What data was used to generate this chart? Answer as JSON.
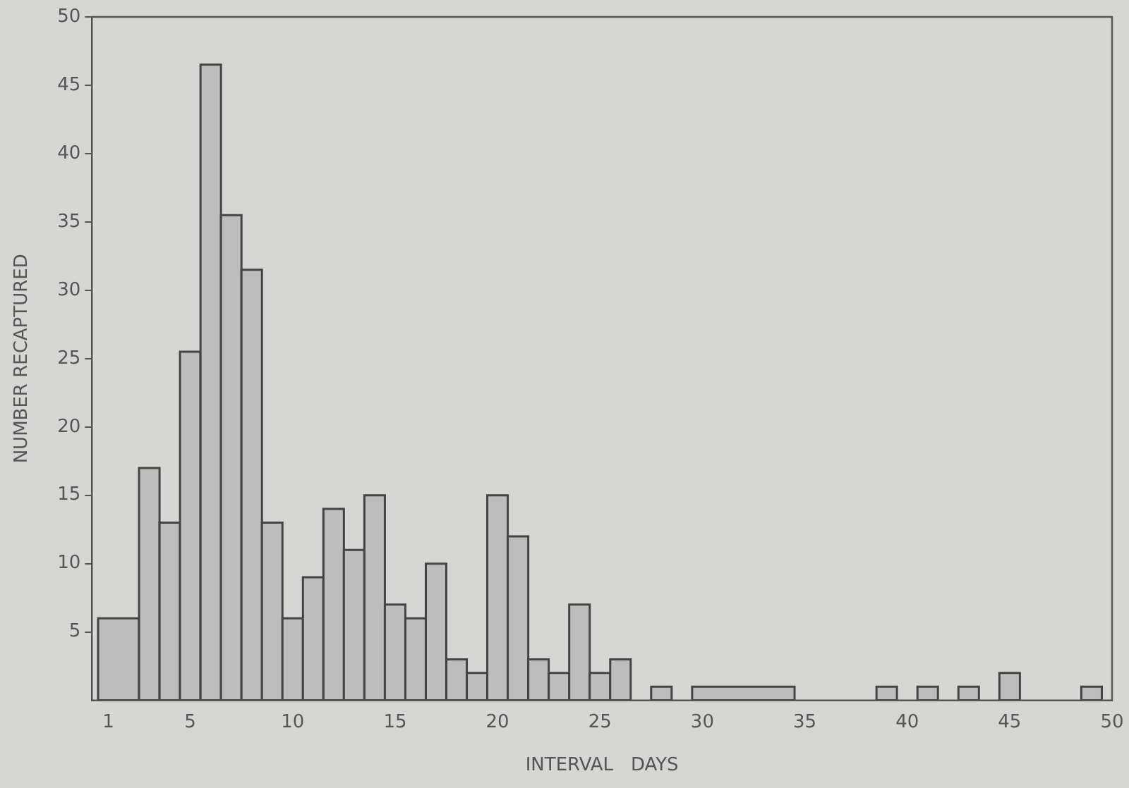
{
  "chart_data": {
    "type": "histogram",
    "xlabel": "INTERVAL   DAYS",
    "ylabel": "NUMBER RECAPTURED",
    "bins": [
      0.5,
      2.5,
      3.5,
      4.5,
      5.5,
      6.5,
      7.5,
      8.5,
      9.5,
      10.5,
      11.5,
      12.5,
      13.5,
      14.5,
      15.5,
      16.5,
      17.5,
      18.5,
      19.5,
      20.5,
      21.5,
      22.5,
      23.5,
      24.5,
      25.5,
      26.5,
      27.5,
      28.5,
      29.5,
      34.5,
      38.5,
      39.5,
      40.5,
      41.5,
      42.5,
      43.5,
      44.5,
      45.5,
      48.5,
      49.5
    ],
    "values": [
      6,
      17,
      13,
      25.5,
      46.5,
      35.5,
      31.5,
      13,
      6,
      9,
      14,
      11,
      15,
      7,
      6,
      10,
      3,
      2,
      15,
      12,
      3,
      2,
      7,
      2,
      3,
      0,
      1,
      0,
      1,
      0,
      1,
      0,
      1,
      0,
      1,
      0,
      2,
      0,
      1
    ],
    "color": "#bdbdbd",
    "xlim": [
      0.2,
      50
    ],
    "xticks": [
      1,
      5,
      10,
      15,
      20,
      25,
      30,
      35,
      40,
      45,
      50
    ],
    "ylim": [
      0,
      50
    ],
    "yticks": [
      5,
      10,
      15,
      20,
      25,
      30,
      35,
      40,
      45,
      50
    ],
    "grid": false
  }
}
